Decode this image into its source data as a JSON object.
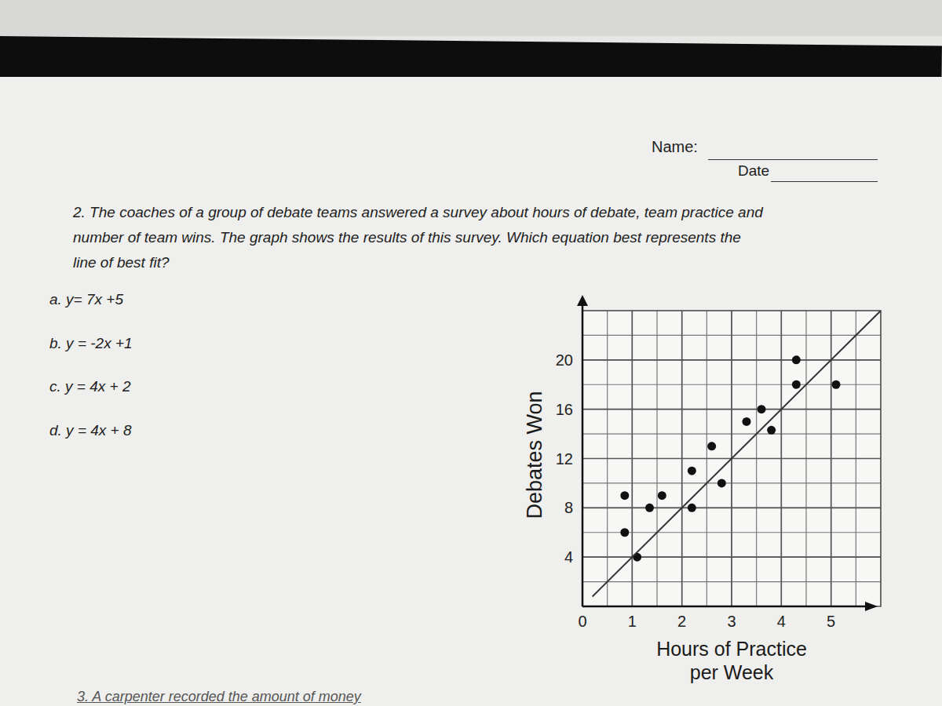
{
  "header": {
    "name_label": "Name:",
    "date_label": "Date"
  },
  "question": {
    "lines": [
      "2. The coaches of a group of debate teams answered a survey about hours of debate, team practice and",
      "number of team wins. The graph shows the results of this survey. Which equation best represents the",
      "line of best fit?"
    ],
    "options": [
      "a. y= 7x +5",
      "b. y = -2x +1",
      "c. y = 4x + 2",
      "d. y = 4x + 8"
    ]
  },
  "footer": {
    "text": "3. A carpenter recorded the amount of money"
  },
  "chart_data": {
    "type": "scatter",
    "x_label": [
      "Hours of Practice",
      "per Week"
    ],
    "y_label": "Debates Won",
    "xlim": [
      0,
      6
    ],
    "ylim": [
      0,
      24
    ],
    "xticks": [
      0,
      1,
      2,
      3,
      4,
      5
    ],
    "yticks": [
      4,
      8,
      12,
      16,
      20
    ],
    "grid": true,
    "series": [
      {
        "type": "scatter",
        "color": "#111111",
        "marker": "circle",
        "x": [
          0.85,
          0.85,
          1.1,
          1.35,
          1.6,
          2.2,
          2.2,
          2.6,
          2.8,
          3.3,
          3.6,
          3.8,
          4.3,
          4.3,
          5.1
        ],
        "values": [
          9,
          6,
          4,
          8,
          9,
          8,
          11,
          13,
          10,
          15,
          16,
          14.3,
          20,
          18,
          18
        ]
      },
      {
        "type": "line",
        "color": "#333333",
        "line_style": "solid",
        "x": [
          0.2,
          6
        ],
        "values": [
          0.8,
          24
        ]
      }
    ]
  }
}
